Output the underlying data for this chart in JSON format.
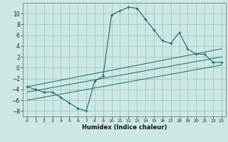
{
  "title": "",
  "xlabel": "Humidex (Indice chaleur)",
  "xlim": [
    -0.5,
    23.5
  ],
  "ylim": [
    -9,
    12
  ],
  "yticks": [
    -8,
    -6,
    -4,
    -2,
    0,
    2,
    4,
    6,
    8,
    10
  ],
  "xticks": [
    0,
    1,
    2,
    3,
    4,
    5,
    6,
    7,
    8,
    9,
    10,
    11,
    12,
    13,
    14,
    15,
    16,
    17,
    18,
    19,
    20,
    21,
    22,
    23
  ],
  "bg_color": "#cce8e4",
  "grid_color": "#a0c8c4",
  "line_color": "#1a6b5e",
  "main_series_x": [
    0,
    1,
    2,
    3,
    4,
    5,
    6,
    7,
    8,
    9,
    10,
    11,
    12,
    13,
    14,
    15,
    16,
    17,
    18,
    19,
    20,
    21,
    22,
    23
  ],
  "main_series_y": [
    -3.5,
    -4.0,
    -4.5,
    -4.5,
    -5.5,
    -6.5,
    -7.5,
    -8.0,
    -2.5,
    -1.5,
    9.8,
    10.5,
    11.2,
    11.0,
    9.0,
    7.0,
    5.0,
    4.5,
    6.5,
    3.5,
    2.5,
    2.5,
    1.0,
    1.0
  ],
  "line2_x": [
    0,
    23
  ],
  "line2_y": [
    -3.5,
    3.5
  ],
  "line3_x": [
    0,
    23
  ],
  "line3_y": [
    -4.5,
    2.0
  ],
  "line4_x": [
    0,
    23
  ],
  "line4_y": [
    -6.0,
    0.5
  ]
}
